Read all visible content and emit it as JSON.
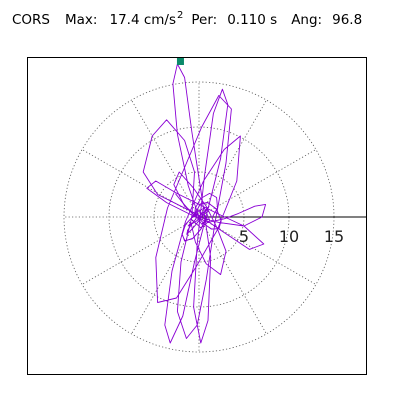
{
  "header": {
    "station": "CORS",
    "max_label": "Max:",
    "max_value": "17.4 cm/s",
    "max_unit_exponent": "2",
    "period_label": "Per:",
    "period_value": "0.110 s",
    "angle_label": "Ang:",
    "angle_value": "96.8"
  },
  "colors": {
    "trace": "#8a00d4",
    "peak_marker": "#0a8a6a",
    "axis": "#000000",
    "grid": "#555555"
  },
  "chart_data": {
    "type": "polar",
    "title": "",
    "radial_ticks": [
      5,
      10,
      15
    ],
    "radial_tick_labels": [
      "5",
      "10",
      "15"
    ],
    "radial_max": 17.4,
    "angular_divisions_deg": 30,
    "peak": {
      "magnitude": 17.4,
      "angle_deg": 96.8
    },
    "grid": true,
    "series": [
      {
        "points": [
          [
            0,
            0
          ],
          [
            -1.2,
            3.5
          ],
          [
            -2.4,
            9.2
          ],
          [
            -2.9,
            14.8
          ],
          [
            -2.4,
            17.0
          ],
          [
            -1.6,
            15.5
          ],
          [
            -0.8,
            9.5
          ],
          [
            0.2,
            3.0
          ],
          [
            1.3,
            -4.5
          ],
          [
            1.0,
            -11.5
          ],
          [
            0.2,
            -14.0
          ],
          [
            -0.6,
            -10.0
          ],
          [
            -0.2,
            -3.0
          ],
          [
            0.6,
            4.5
          ],
          [
            1.6,
            11.5
          ],
          [
            2.6,
            14.2
          ],
          [
            3.2,
            12.5
          ],
          [
            2.4,
            6.5
          ],
          [
            0.9,
            0.5
          ],
          [
            -0.5,
            -5.0
          ],
          [
            -1.8,
            -11.0
          ],
          [
            -3.2,
            -14.0
          ],
          [
            -3.8,
            -12.0
          ],
          [
            -3.0,
            -6.0
          ],
          [
            -1.5,
            -0.5
          ],
          [
            0.5,
            4.0
          ],
          [
            2.8,
            7.5
          ],
          [
            4.6,
            9.0
          ],
          [
            4.2,
            4.0
          ],
          [
            2.0,
            -1.5
          ],
          [
            -0.3,
            -5.5
          ],
          [
            -2.5,
            -9.0
          ],
          [
            -4.6,
            -9.5
          ],
          [
            -4.8,
            -4.5
          ],
          [
            -3.5,
            1.0
          ],
          [
            -1.6,
            5.5
          ],
          [
            0.3,
            10.0
          ],
          [
            2.2,
            13.5
          ],
          [
            3.6,
            12.0
          ],
          [
            3.0,
            6.0
          ],
          [
            1.8,
            -0.5
          ],
          [
            0.8,
            -7.0
          ],
          [
            -0.2,
            -12.0
          ],
          [
            -1.4,
            -13.5
          ],
          [
            -2.4,
            -10.5
          ],
          [
            -2.0,
            -5.0
          ],
          [
            -0.8,
            0.0
          ],
          [
            -0.5,
            5.0
          ],
          [
            -1.6,
            8.5
          ],
          [
            -3.6,
            10.8
          ],
          [
            -5.2,
            9.0
          ],
          [
            -6.2,
            5.0
          ],
          [
            -4.6,
            2.5
          ],
          [
            -2.0,
            1.2
          ],
          [
            0.0,
            0.2
          ],
          [
            2.6,
            -1.6
          ],
          [
            5.6,
            -3.6
          ],
          [
            7.2,
            -3.0
          ],
          [
            5.0,
            -1.0
          ],
          [
            2.0,
            0.4
          ],
          [
            0.4,
            1.2
          ],
          [
            -2.4,
            2.6
          ],
          [
            -4.8,
            4.0
          ],
          [
            -5.8,
            3.2
          ],
          [
            -3.6,
            1.6
          ],
          [
            -1.2,
            0.4
          ],
          [
            1.0,
            -0.6
          ],
          [
            2.8,
            -0.2
          ],
          [
            4.4,
            0.4
          ],
          [
            6.2,
            1.2
          ],
          [
            7.4,
            1.4
          ],
          [
            7.0,
            0.0
          ],
          [
            5.0,
            -1.0
          ],
          [
            2.2,
            -0.6
          ],
          [
            0.0,
            0.0
          ],
          [
            -1.6,
            1.2
          ],
          [
            -2.8,
            3.6
          ],
          [
            -2.2,
            5.0
          ],
          [
            -0.6,
            3.2
          ],
          [
            0.8,
            1.2
          ],
          [
            2.0,
            -1.2
          ],
          [
            3.0,
            -3.8
          ],
          [
            2.4,
            -6.4
          ],
          [
            0.8,
            -5.2
          ],
          [
            -0.4,
            -2.8
          ],
          [
            -0.9,
            -0.6
          ],
          [
            -1.2,
            -1.0
          ],
          [
            -0.2,
            -0.4
          ],
          [
            0.4,
            0.6
          ],
          [
            0.9,
            -0.2
          ],
          [
            0.3,
            -0.8
          ],
          [
            -0.5,
            0.4
          ],
          [
            0.6,
            1.0
          ],
          [
            1.2,
            -0.4
          ],
          [
            0.2,
            -1.2
          ],
          [
            -0.9,
            -0.2
          ],
          [
            -0.2,
            0.8
          ],
          [
            0.5,
            0.2
          ],
          [
            0.0,
            0.0
          ]
        ]
      }
    ]
  }
}
